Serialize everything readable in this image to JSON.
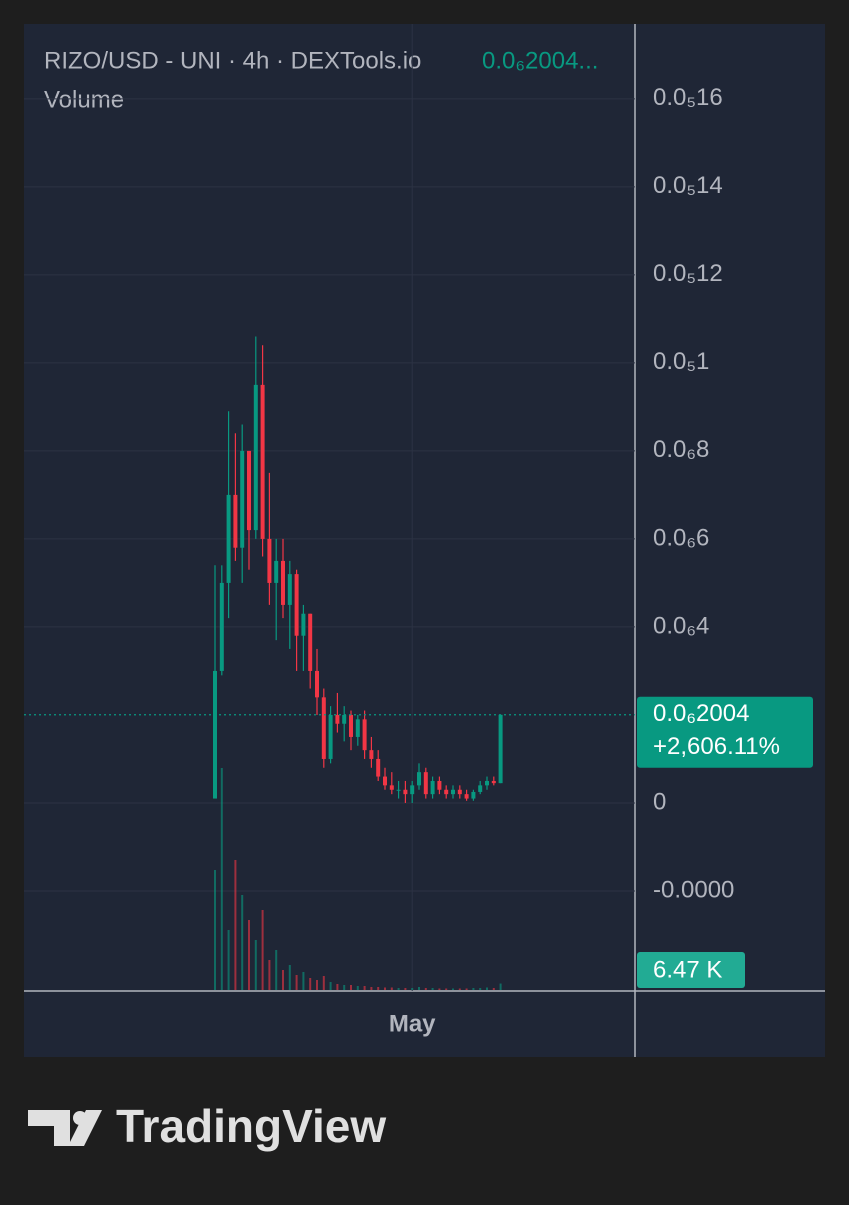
{
  "chart_data": {
    "type": "candlestick",
    "title": "RIZO/USD - UNI · 4h · DEXTools.io",
    "header_price": "0.0₆2004...",
    "volume_title": "Volume",
    "price_label": "0.0₆2004",
    "change_label": "+2,606.11%",
    "up_color": "#089981",
    "down_color": "#f23645",
    "ylim": [
      -4.25e-07,
      1.77e-06
    ],
    "yticks": [
      {
        "value": 1.6e-06,
        "label": "0.0₅16"
      },
      {
        "value": 1.4e-06,
        "label": "0.0₅14"
      },
      {
        "value": 1.2e-06,
        "label": "0.0₅12"
      },
      {
        "value": 1e-06,
        "label": "0.0₅1"
      },
      {
        "value": 8e-07,
        "label": "0.0₆8"
      },
      {
        "value": 6e-07,
        "label": "0.0₆6"
      },
      {
        "value": 4e-07,
        "label": "0.0₆4"
      },
      0,
      {
        "value": -2e-07,
        "label": "-0.0000"
      }
    ],
    "xticks": [
      {
        "value": 29,
        "label": "May"
      }
    ],
    "grid": true,
    "open": [
      1e-08,
      3e-07,
      5e-07,
      7e-07,
      5.8e-07,
      8e-07,
      6.2e-07,
      9.5e-07,
      6e-07,
      5e-07,
      5.5e-07,
      4.5e-07,
      5.2e-07,
      3.8e-07,
      4.3e-07,
      3e-07,
      2.4e-07,
      1e-07,
      2e-07,
      1.8e-07,
      2e-07,
      1.5e-07,
      1.9e-07,
      1.2e-07,
      1e-07,
      6e-08,
      4e-08,
      3e-08,
      3e-08,
      2e-08,
      4e-08,
      7e-08,
      2e-08,
      5e-08,
      3e-08,
      2e-08,
      3e-08,
      2e-08,
      1e-08,
      2.5e-08,
      4e-08,
      5e-08,
      4.5e-08
    ],
    "high": [
      5.4e-07,
      5.4e-07,
      8.9e-07,
      8.4e-07,
      8.6e-07,
      8e-07,
      1.06e-06,
      1.04e-06,
      7.5e-07,
      6e-07,
      6e-07,
      5.5e-07,
      5.3e-07,
      4.5e-07,
      4.3e-07,
      3.5e-07,
      2.6e-07,
      2.2e-07,
      2.5e-07,
      2.2e-07,
      2.1e-07,
      2e-07,
      2.1e-07,
      1.5e-07,
      1.2e-07,
      8e-08,
      7e-08,
      5e-08,
      5e-08,
      5e-08,
      9e-08,
      8e-08,
      6e-08,
      6e-08,
      4e-08,
      4e-08,
      4e-08,
      3e-08,
      3e-08,
      5e-08,
      6e-08,
      6e-08,
      2e-07
    ],
    "low": [
      1e-08,
      2.9e-07,
      4.2e-07,
      5.5e-07,
      5e-07,
      5.3e-07,
      6e-07,
      5.6e-07,
      4.5e-07,
      3.7e-07,
      4.2e-07,
      3.5e-07,
      3e-07,
      3e-07,
      2.6e-07,
      2e-07,
      8e-08,
      9e-08,
      1.6e-07,
      1.4e-07,
      1.2e-07,
      1.3e-07,
      1e-07,
      8e-08,
      5e-08,
      3e-08,
      2e-08,
      1e-08,
      0,
      0,
      3e-08,
      1e-08,
      1e-08,
      2e-08,
      1e-08,
      1e-08,
      1e-08,
      5e-09,
      5e-09,
      2e-08,
      3e-08,
      4e-08,
      4.5e-08
    ],
    "close": [
      3e-07,
      5e-07,
      7e-07,
      5.8e-07,
      8e-07,
      6.2e-07,
      9.5e-07,
      6e-07,
      5e-07,
      5.5e-07,
      4.5e-07,
      5.2e-07,
      3.8e-07,
      4.3e-07,
      3e-07,
      2.4e-07,
      1e-07,
      2e-07,
      1.8e-07,
      2e-07,
      1.5e-07,
      1.9e-07,
      1.2e-07,
      1e-07,
      6e-08,
      4e-08,
      3e-08,
      3e-08,
      2e-08,
      4e-08,
      7e-08,
      2e-08,
      5e-08,
      3e-08,
      2e-08,
      3e-08,
      2e-08,
      1e-08,
      2.5e-08,
      4e-08,
      5e-08,
      4.5e-08,
      2.004e-07
    ],
    "vlim": [
      0,
      250000
    ],
    "volume": [
      120000,
      222000,
      60000,
      130000,
      95000,
      70000,
      50000,
      80000,
      30000,
      40000,
      20000,
      25000,
      15000,
      18000,
      12000,
      10000,
      14000,
      8000,
      6000,
      5000,
      5000,
      4000,
      4000,
      3000,
      3000,
      2500,
      2500,
      2000,
      2000,
      2000,
      3000,
      2000,
      2000,
      1500,
      1500,
      1500,
      1500,
      1500,
      2000,
      2000,
      2500,
      2000,
      6470
    ],
    "volume_label": "6.47 K"
  },
  "footer": {
    "brand": "TradingView"
  }
}
